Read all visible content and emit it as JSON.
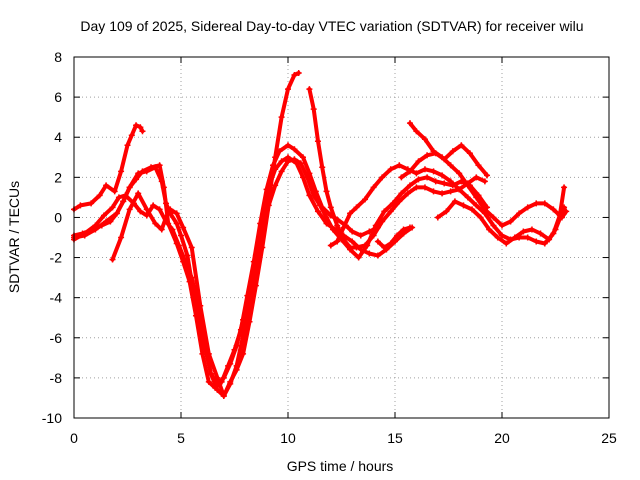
{
  "chart_data": {
    "type": "scatter",
    "title": "Day 109 of 2025, Sidereal Day-to-day VTEC variation (SDTVAR) for receiver wilu",
    "xlabel": "GPS time / hours",
    "ylabel": "SDTVAR / TECUs",
    "xlim": [
      0,
      25
    ],
    "ylim": [
      -10,
      8
    ],
    "xticks": [
      0,
      5,
      10,
      15,
      20,
      25
    ],
    "yticks": [
      -10,
      -8,
      -6,
      -4,
      -2,
      0,
      2,
      4,
      6,
      8
    ],
    "grid": true,
    "marker": "plus",
    "colors": {
      "series": "#ff0000",
      "axis": "#000000",
      "grid": "#a0a0a0"
    },
    "series": [
      {
        "x": [
          0.0,
          0.3,
          0.8,
          1.2,
          1.5,
          1.9,
          2.2,
          2.5,
          2.7,
          2.9,
          3.1,
          3.2
        ],
        "y": [
          0.4,
          0.6,
          0.7,
          1.1,
          1.6,
          1.3,
          2.3,
          3.6,
          4.1,
          4.6,
          4.5,
          4.3
        ]
      },
      {
        "x": [
          0.0,
          0.5,
          1.0,
          1.5,
          2.0,
          2.3,
          2.6,
          3.0,
          3.4,
          3.8,
          4.1,
          4.3,
          4.5,
          4.8,
          5.0,
          5.3,
          5.5,
          5.8,
          6.1,
          6.4,
          6.7,
          7.0,
          7.3,
          7.6,
          7.9,
          8.2,
          8.5,
          8.8,
          9.1,
          9.4,
          9.7,
          10.0,
          10.3,
          10.5
        ],
        "y": [
          -1.0,
          -0.9,
          -0.6,
          -0.2,
          0.2,
          0.8,
          1.5,
          2.2,
          2.3,
          2.5,
          1.8,
          0.7,
          0.2,
          -0.3,
          -0.9,
          -1.9,
          -3.2,
          -4.6,
          -6.3,
          -7.8,
          -8.6,
          -8.9,
          -8.3,
          -7.4,
          -5.9,
          -4.3,
          -2.8,
          -1.0,
          0.9,
          3.0,
          5.0,
          6.4,
          7.1,
          7.2
        ]
      },
      {
        "x": [
          0.0,
          0.4,
          0.9,
          1.3,
          1.7,
          2.0,
          2.3,
          2.6,
          2.9,
          3.2,
          3.6,
          4.0,
          4.2,
          4.4,
          4.8,
          5.1,
          5.4,
          5.7,
          6.0,
          6.3,
          6.6,
          6.9,
          7.2,
          7.5,
          7.8,
          8.1,
          8.4,
          8.7,
          9.0,
          9.3,
          9.6,
          10.0,
          10.3,
          10.7,
          11.0,
          11.3,
          11.6,
          12.0,
          12.3,
          12.7,
          13.0,
          13.4,
          13.8,
          14.2
        ],
        "y": [
          -0.9,
          -0.8,
          -0.6,
          -0.4,
          -0.2,
          0.2,
          0.8,
          1.5,
          1.9,
          2.3,
          2.5,
          2.6,
          1.5,
          -0.3,
          -1.3,
          -2.2,
          -3.2,
          -4.9,
          -6.8,
          -8.2,
          -8.5,
          -8.2,
          -7.4,
          -6.6,
          -5.6,
          -3.9,
          -2.2,
          -0.3,
          1.4,
          2.6,
          3.3,
          3.6,
          3.4,
          3.0,
          2.2,
          1.3,
          0.5,
          0.1,
          -0.1,
          -0.4,
          -0.7,
          -0.9,
          -0.7,
          -0.5
        ]
      },
      {
        "x": [
          0.0,
          0.5,
          1.0,
          1.4,
          1.8,
          2.1,
          2.4,
          2.8,
          3.1,
          3.4,
          3.7,
          4.0,
          4.3,
          4.6,
          4.9,
          5.2,
          5.5,
          5.8,
          6.1,
          6.4,
          6.7,
          7.0,
          7.3,
          7.6,
          7.9,
          8.2,
          8.5,
          8.8,
          9.1,
          9.4,
          9.7,
          10.0,
          10.4,
          10.7,
          11.0,
          11.4,
          11.8,
          12.2,
          12.6,
          13.0,
          13.4,
          13.8,
          14.2,
          14.6,
          15.0,
          15.4,
          15.8
        ],
        "y": [
          -1.1,
          -0.8,
          -0.4,
          0.1,
          0.5,
          1.0,
          1.1,
          0.7,
          0.3,
          0.1,
          0.6,
          0.4,
          -0.2,
          -0.6,
          -1.4,
          -2.2,
          -3.0,
          -4.4,
          -6.4,
          -7.8,
          -8.3,
          -8.0,
          -7.3,
          -6.4,
          -5.1,
          -3.6,
          -1.9,
          -0.2,
          1.5,
          2.4,
          2.8,
          3.0,
          2.7,
          2.0,
          1.1,
          0.3,
          -0.3,
          -0.6,
          -0.9,
          -1.2,
          -1.6,
          -1.8,
          -1.9,
          -1.6,
          -1.2,
          -0.8,
          -0.5
        ]
      },
      {
        "x": [
          1.8,
          2.2,
          2.6,
          3.0,
          3.4,
          3.8,
          4.1,
          4.3,
          4.5,
          4.8,
          5.1,
          5.5,
          5.9,
          6.3,
          6.7,
          7.0,
          7.3,
          7.6,
          7.9,
          8.2,
          8.5,
          8.8,
          9.1,
          9.4,
          9.7,
          10.0,
          10.3,
          10.6,
          10.9,
          11.2,
          11.5,
          11.8,
          12.1,
          12.5,
          12.9,
          13.3,
          13.7,
          14.1,
          14.5,
          14.9,
          15.3,
          15.7,
          16.1,
          16.5,
          16.9,
          17.3,
          17.7,
          18.1,
          18.5,
          18.9,
          19.3
        ],
        "y": [
          -2.1,
          -1.0,
          0.4,
          1.2,
          0.4,
          -0.3,
          -0.6,
          0.0,
          0.4,
          0.2,
          -0.5,
          -1.5,
          -4.4,
          -6.8,
          -8.0,
          -8.9,
          -8.2,
          -7.6,
          -6.8,
          -5.2,
          -3.4,
          -1.5,
          0.6,
          1.6,
          2.3,
          2.8,
          2.9,
          2.7,
          2.0,
          1.1,
          0.6,
          0.0,
          -0.6,
          -1.1,
          -1.6,
          -2.0,
          -1.4,
          -0.4,
          0.3,
          0.7,
          1.2,
          1.6,
          1.9,
          2.0,
          1.8,
          1.7,
          1.6,
          1.8,
          1.6,
          1.1,
          0.5
        ]
      },
      {
        "x": [
          11.0,
          11.2,
          11.4,
          11.6,
          11.8,
          12.0,
          12.3,
          12.6,
          12.9,
          13.2,
          13.6,
          14.0,
          14.4,
          14.8,
          15.2,
          15.6,
          16.0,
          16.4,
          16.8,
          17.2,
          17.6,
          18.0,
          18.4,
          18.8,
          19.2
        ],
        "y": [
          6.4,
          5.4,
          3.8,
          2.5,
          1.3,
          0.5,
          -0.4,
          -1.1,
          -1.5,
          -1.5,
          -1.4,
          -0.9,
          -0.2,
          0.3,
          0.8,
          1.2,
          1.5,
          1.5,
          1.3,
          1.2,
          1.3,
          1.4,
          1.7,
          2.0,
          1.8
        ]
      },
      {
        "x": [
          12.0,
          12.3,
          12.6,
          12.9,
          13.2,
          13.6,
          14.0,
          14.4,
          14.8,
          15.2,
          15.6,
          16.0,
          16.4,
          16.8,
          17.2,
          17.6,
          18.0,
          18.4,
          18.8,
          19.2,
          19.6,
          20.0,
          20.4,
          20.8,
          21.2,
          21.6,
          22.0,
          22.4,
          22.7,
          22.9
        ],
        "y": [
          -1.4,
          -1.2,
          -0.5,
          0.2,
          0.5,
          0.9,
          1.5,
          2.0,
          2.4,
          2.6,
          2.4,
          2.2,
          2.4,
          2.3,
          2.1,
          1.8,
          1.4,
          1.0,
          0.6,
          0.2,
          -0.4,
          -0.9,
          -1.1,
          -1.0,
          -1.0,
          -1.2,
          -1.3,
          -0.8,
          0.1,
          1.5
        ]
      },
      {
        "x": [
          15.7,
          16.0,
          16.4,
          16.8,
          17.2,
          17.6,
          18.0,
          18.4,
          18.8,
          19.2,
          19.6,
          20.0,
          20.4,
          20.8,
          21.2,
          21.6,
          22.0,
          22.4,
          22.8,
          23.0
        ],
        "y": [
          4.7,
          4.3,
          3.9,
          3.3,
          3.0,
          2.6,
          2.2,
          1.6,
          1.0,
          0.4,
          0.0,
          -0.4,
          -0.2,
          0.2,
          0.5,
          0.7,
          0.7,
          0.4,
          0.0,
          0.3
        ]
      },
      {
        "x": [
          17.0,
          17.4,
          17.8,
          18.2,
          18.6,
          19.0,
          19.4,
          19.8,
          20.2,
          20.6,
          21.0,
          21.4,
          21.8,
          22.2,
          22.5,
          22.8,
          22.9
        ],
        "y": [
          0.0,
          0.3,
          0.8,
          0.6,
          0.4,
          0.0,
          -0.6,
          -1.0,
          -1.3,
          -1.0,
          -0.7,
          -0.6,
          -0.8,
          -1.1,
          -0.6,
          0.2,
          0.5
        ]
      },
      {
        "x": [
          14.2,
          14.5,
          14.8,
          15.1,
          15.4,
          15.7
        ],
        "y": [
          -1.2,
          -1.5,
          -1.3,
          -0.9,
          -0.6,
          -0.5
        ]
      },
      {
        "x": [
          15.3,
          15.7,
          16.1,
          16.5,
          16.9,
          17.3,
          17.7,
          18.1,
          18.5,
          18.9,
          19.3
        ],
        "y": [
          2.0,
          2.3,
          2.8,
          3.1,
          3.2,
          2.9,
          3.3,
          3.6,
          3.2,
          2.6,
          2.1
        ]
      }
    ]
  }
}
